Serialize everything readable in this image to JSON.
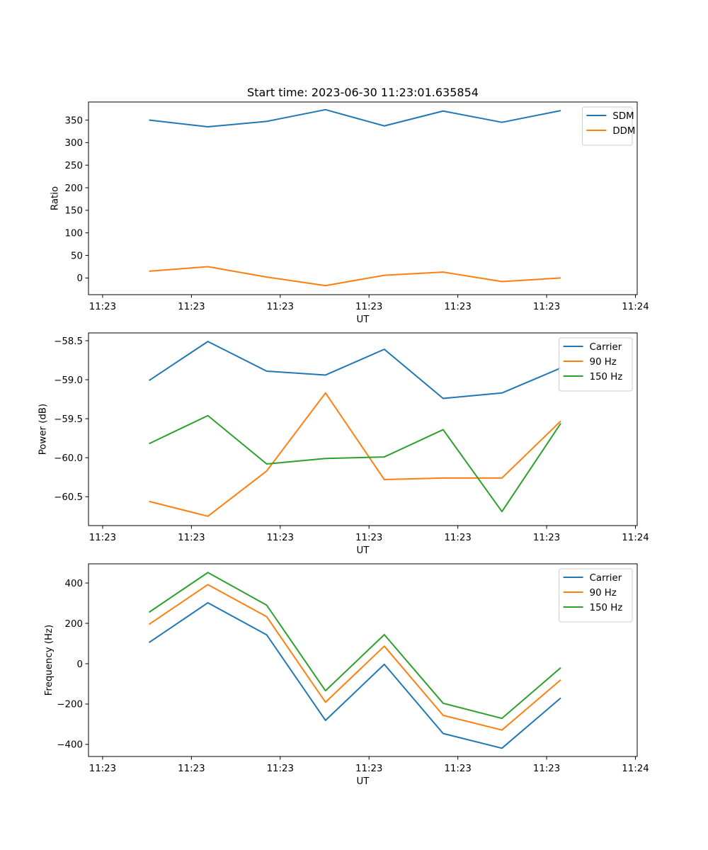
{
  "chart_data": [
    {
      "type": "line",
      "title": "Start time: 2023-06-30 11:23:01.635854",
      "xlabel": "UT",
      "ylabel": "Ratio",
      "x_index": [
        1,
        2,
        3,
        4,
        5,
        6,
        7,
        8
      ],
      "xlim": [
        -0.03,
        9.3
      ],
      "xtick_positions": [
        0.21,
        1.72,
        3.23,
        4.74,
        6.25,
        7.76,
        9.27
      ],
      "xtick_labels": [
        "11:23",
        "11:23",
        "11:23",
        "11:23",
        "11:23",
        "11:23",
        "11:24"
      ],
      "ylim": [
        -37,
        390
      ],
      "yticks": [
        0,
        50,
        100,
        150,
        200,
        250,
        300,
        350
      ],
      "ytick_labels": [
        "0",
        "50",
        "100",
        "150",
        "200",
        "250",
        "300",
        "350"
      ],
      "grid": false,
      "legend_position": "top-right",
      "series": [
        {
          "name": "SDM",
          "color": "#1f77b4",
          "values": [
            350,
            335,
            347,
            373,
            337,
            370,
            345,
            371
          ]
        },
        {
          "name": "DDM",
          "color": "#ff7f0e",
          "values": [
            15,
            25,
            2,
            -17,
            6,
            13,
            -8,
            0
          ]
        }
      ]
    },
    {
      "type": "line",
      "title": "",
      "xlabel": "UT",
      "ylabel": "Power (dB)",
      "x_index": [
        1,
        2,
        3,
        4,
        5,
        6,
        7,
        8
      ],
      "xlim": [
        -0.03,
        9.3
      ],
      "xtick_positions": [
        0.21,
        1.72,
        3.23,
        4.74,
        6.25,
        7.76,
        9.27
      ],
      "xtick_labels": [
        "11:23",
        "11:23",
        "11:23",
        "11:23",
        "11:23",
        "11:23",
        "11:24"
      ],
      "ylim": [
        -60.87,
        -58.4
      ],
      "yticks": [
        -60.5,
        -60.0,
        -59.5,
        -59.0,
        -58.5
      ],
      "ytick_labels": [
        "−60.5",
        "−60.0",
        "−59.5",
        "−59.0",
        "−58.5"
      ],
      "grid": false,
      "legend_position": "top-right",
      "series": [
        {
          "name": "Carrier",
          "color": "#1f77b4",
          "values": [
            -59.01,
            -58.51,
            -58.89,
            -58.94,
            -58.61,
            -59.24,
            -59.17,
            -58.85
          ]
        },
        {
          "name": "90 Hz",
          "color": "#ff7f0e",
          "values": [
            -60.56,
            -60.75,
            -60.17,
            -59.17,
            -60.28,
            -60.26,
            -60.26,
            -59.53
          ]
        },
        {
          "name": "150 Hz",
          "color": "#2ca02c",
          "values": [
            -59.82,
            -59.46,
            -60.08,
            -60.01,
            -59.99,
            -59.64,
            -60.69,
            -59.56
          ]
        }
      ]
    },
    {
      "type": "line",
      "title": "",
      "xlabel": "UT",
      "ylabel": "Frequency (Hz)",
      "x_index": [
        1,
        2,
        3,
        4,
        5,
        6,
        7,
        8
      ],
      "xlim": [
        -0.03,
        9.3
      ],
      "xtick_positions": [
        0.21,
        1.72,
        3.23,
        4.74,
        6.25,
        7.76,
        9.27
      ],
      "xtick_labels": [
        "11:23",
        "11:23",
        "11:23",
        "11:23",
        "11:23",
        "11:23",
        "11:24"
      ],
      "ylim": [
        -460,
        495
      ],
      "yticks": [
        -400,
        -200,
        0,
        200,
        400
      ],
      "ytick_labels": [
        "−400",
        "−200",
        "0",
        "200",
        "400"
      ],
      "grid": false,
      "legend_position": "top-right",
      "series": [
        {
          "name": "Carrier",
          "color": "#1f77b4",
          "values": [
            105,
            302,
            143,
            -281,
            -3,
            -346,
            -419,
            -170
          ]
        },
        {
          "name": "90 Hz",
          "color": "#ff7f0e",
          "values": [
            195,
            392,
            233,
            -191,
            87,
            -256,
            -329,
            -80
          ]
        },
        {
          "name": "150 Hz",
          "color": "#2ca02c",
          "values": [
            255,
            452,
            290,
            -134,
            144,
            -196,
            -271,
            -20
          ]
        }
      ]
    }
  ]
}
